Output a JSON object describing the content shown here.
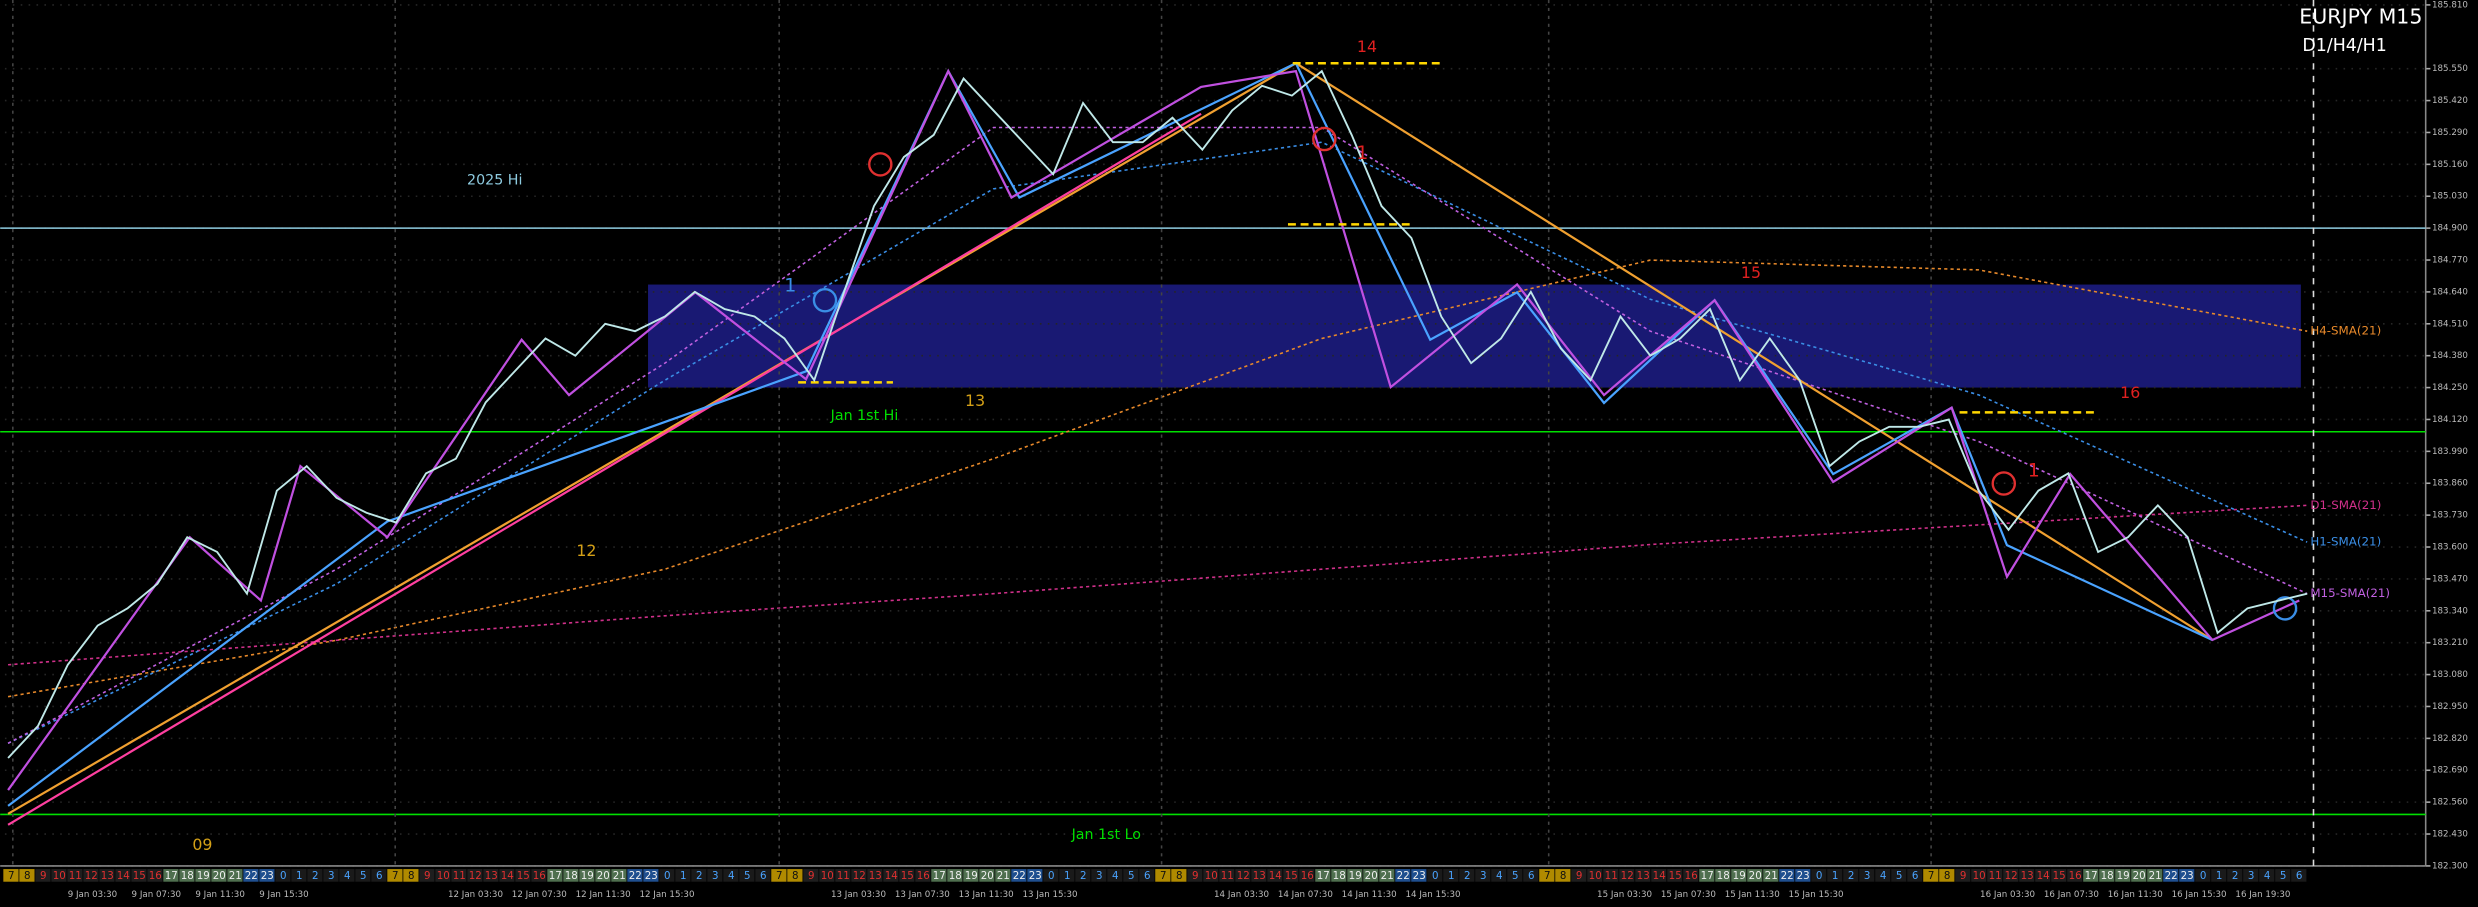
{
  "chart_data": {
    "type": "line",
    "title": "EURJPY M15",
    "subtitle": "D1/H4/H1",
    "ylim": [
      182.3,
      185.83
    ],
    "yticks": [
      {
        "value": 185.81,
        "label": "185.810"
      },
      {
        "value": 185.55,
        "label": "185.550"
      },
      {
        "value": 185.42,
        "label": "185.420"
      },
      {
        "value": 185.29,
        "label": "185.290"
      },
      {
        "value": 185.16,
        "label": "185.160"
      },
      {
        "value": 185.03,
        "label": "185.030"
      },
      {
        "value": 184.9,
        "label": "184.900"
      },
      {
        "value": 184.77,
        "label": "184.770"
      },
      {
        "value": 184.64,
        "label": "184.640"
      },
      {
        "value": 184.51,
        "label": "184.510"
      },
      {
        "value": 184.38,
        "label": "184.380"
      },
      {
        "value": 184.25,
        "label": "184.250"
      },
      {
        "value": 184.12,
        "label": "184.120"
      },
      {
        "value": 183.99,
        "label": "183.990"
      },
      {
        "value": 183.86,
        "label": "183.860"
      },
      {
        "value": 183.73,
        "label": "183.730"
      },
      {
        "value": 183.6,
        "label": "183.600"
      },
      {
        "value": 183.47,
        "label": "183.470"
      },
      {
        "value": 183.34,
        "label": "183.340"
      },
      {
        "value": 183.21,
        "label": "183.210"
      },
      {
        "value": 183.08,
        "label": "183.080"
      },
      {
        "value": 182.95,
        "label": "182.950"
      },
      {
        "value": 182.82,
        "label": "182.820"
      },
      {
        "value": 182.69,
        "label": "182.690"
      },
      {
        "value": 182.56,
        "label": "182.560"
      },
      {
        "value": 182.43,
        "label": "182.430"
      },
      {
        "value": 182.3,
        "label": "182.300"
      }
    ],
    "grid": true,
    "time_labels": [
      null,
      "9 Jan 03:30",
      "9 Jan 07:30",
      "9 Jan 11:30",
      "9 Jan 15:30",
      null,
      null,
      "12 Jan 03:30",
      "12 Jan 07:30",
      "12 Jan 11:30",
      "12 Jan 15:30",
      null,
      null,
      "13 Jan 03:30",
      "13 Jan 07:30",
      "13 Jan 11:30",
      "13 Jan 15:30",
      null,
      null,
      "14 Jan 03:30",
      "14 Jan 07:30",
      "14 Jan 11:30",
      "14 Jan 15:30",
      null,
      null,
      "15 Jan 03:30",
      "15 Jan 07:30",
      "15 Jan 11:30",
      "15 Jan 15:30",
      null,
      null,
      "16 Jan 03:30",
      "16 Jan 07:30",
      "16 Jan 11:30",
      "16 Jan 15:30",
      "16 Jan 19:30"
    ],
    "hour_strip": [
      7,
      8,
      9,
      10,
      11,
      12,
      13,
      14,
      15,
      16,
      17,
      18,
      19,
      20,
      21,
      22,
      23,
      0,
      1,
      2,
      3,
      4,
      5,
      6,
      7,
      8,
      9,
      10,
      11,
      12,
      13,
      14,
      15,
      16,
      17,
      18,
      19,
      20,
      21,
      22,
      23,
      0,
      1,
      2,
      3,
      4,
      5,
      6,
      7,
      8,
      9,
      10,
      11,
      12,
      13,
      14,
      15,
      16,
      17,
      18,
      19,
      20,
      21,
      22,
      23,
      0,
      1,
      2,
      3,
      4,
      5,
      6,
      7,
      8,
      9,
      10,
      11,
      12,
      13,
      14,
      15,
      16,
      17,
      18,
      19,
      20,
      21,
      22,
      23,
      0,
      1,
      2,
      3,
      4,
      5,
      6,
      7,
      8,
      9,
      10,
      11,
      12,
      13,
      14,
      15,
      16,
      17,
      18,
      19,
      20,
      21,
      22,
      23,
      0,
      1,
      2,
      3,
      4,
      5,
      6,
      7,
      8,
      9,
      10,
      11,
      12,
      13,
      14,
      15,
      16,
      17,
      18,
      19,
      20,
      21,
      22,
      23,
      0,
      1,
      2,
      3,
      4,
      5,
      6
    ],
    "series": [
      {
        "color": "#bfe8e8",
        "values": [
          182.74,
          182.87,
          183.12,
          183.28,
          183.35,
          183.45,
          183.64,
          183.58,
          183.41,
          183.83,
          183.93,
          183.8,
          183.74,
          183.7,
          183.9,
          183.96,
          184.19,
          184.32,
          184.45,
          184.38,
          184.51,
          184.48,
          184.54,
          184.64,
          184.57,
          184.54,
          184.45,
          184.28,
          184.64,
          184.99,
          185.19,
          185.28,
          185.51,
          185.38,
          185.25,
          185.12,
          185.41,
          185.25,
          185.25,
          185.35,
          185.22,
          185.38,
          185.48,
          185.44,
          185.54,
          185.28,
          184.99,
          184.86,
          184.54,
          184.35,
          184.45,
          184.64,
          184.41,
          184.28,
          184.54,
          184.38,
          184.45,
          184.57,
          184.28,
          184.45,
          184.28,
          183.93,
          184.03,
          184.09,
          184.09,
          184.12,
          183.83,
          183.67,
          183.83,
          183.9,
          183.58,
          183.64,
          183.77,
          183.64,
          183.25,
          183.35,
          183.38,
          183.41
        ]
      },
      {
        "name": "H4-SMA(21)",
        "color": "#e8892a",
        "values": [
          182.99,
          183.22,
          183.51,
          183.96,
          184.45,
          184.77,
          184.73,
          184.48
        ]
      },
      {
        "name": "D1-SMA(21)",
        "color": "#d0308a",
        "values": [
          183.12,
          183.22,
          183.32,
          183.41,
          183.51,
          183.61,
          183.69,
          183.77
        ]
      },
      {
        "name": "H1-SMA(21)",
        "color": "#3a8ee6",
        "values": [
          182.8,
          183.45,
          184.28,
          185.06,
          185.25,
          184.61,
          184.22,
          183.62
        ]
      },
      {
        "name": "M15-SMA(21)",
        "color": "#c060e0",
        "values": [
          182.8,
          183.51,
          184.35,
          185.31,
          185.31,
          184.48,
          184.03,
          183.41
        ]
      }
    ],
    "levels": [
      {
        "name": "2025 Hi",
        "value": 184.9,
        "color": "#8ecbe0"
      },
      {
        "name": "Jan 1st Hi",
        "value": 184.07,
        "color": "#00e000"
      },
      {
        "name": "Jan 1st Lo",
        "value": 182.51,
        "color": "#00e000"
      }
    ],
    "zone": {
      "from": 184.25,
      "to": 184.67,
      "color": "#1c1c80"
    },
    "annotations": [
      "09",
      "12",
      "13",
      "14",
      "15",
      "16",
      "1",
      "1",
      "1"
    ]
  }
}
